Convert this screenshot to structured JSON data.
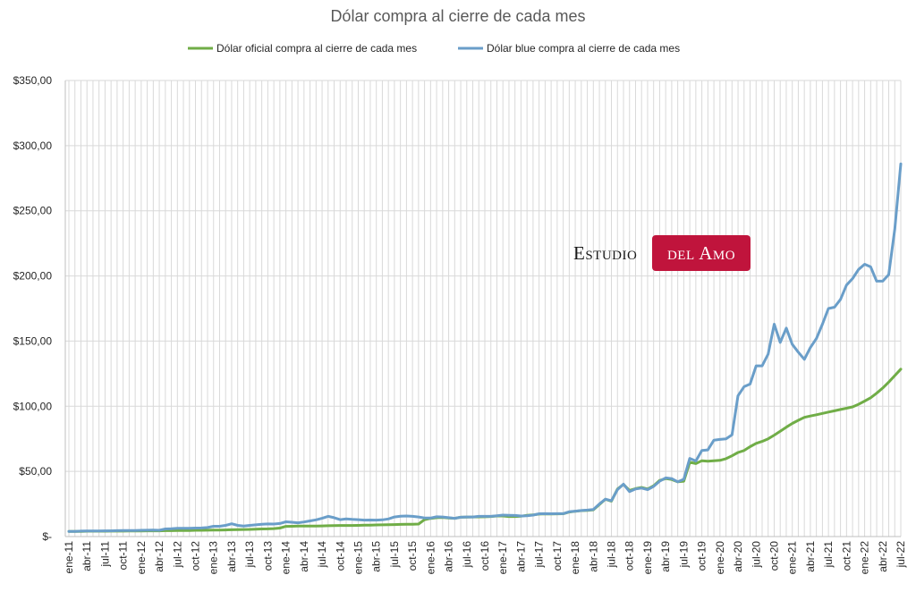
{
  "chart_data": {
    "type": "line",
    "title": "Dólar compra al cierre de cada mes",
    "xlabel": "",
    "ylabel": "",
    "ylim": [
      0,
      350
    ],
    "y_ticks": [
      0,
      50,
      100,
      150,
      200,
      250,
      300,
      350
    ],
    "y_tick_labels": [
      "$-",
      "$50,00",
      "$100,00",
      "$150,00",
      "$200,00",
      "$250,00",
      "$300,00",
      "$350,00"
    ],
    "grid": "vertical and horizontal",
    "legend_position": "top",
    "x": [
      "ene-11",
      "feb-11",
      "mar-11",
      "abr-11",
      "may-11",
      "jun-11",
      "jul-11",
      "ago-11",
      "sep-11",
      "oct-11",
      "nov-11",
      "dic-11",
      "ene-12",
      "feb-12",
      "mar-12",
      "abr-12",
      "may-12",
      "jun-12",
      "jul-12",
      "ago-12",
      "sep-12",
      "oct-12",
      "nov-12",
      "dic-12",
      "ene-13",
      "feb-13",
      "mar-13",
      "abr-13",
      "may-13",
      "jun-13",
      "jul-13",
      "ago-13",
      "sep-13",
      "oct-13",
      "nov-13",
      "dic-13",
      "ene-14",
      "feb-14",
      "mar-14",
      "abr-14",
      "may-14",
      "jun-14",
      "jul-14",
      "ago-14",
      "sep-14",
      "oct-14",
      "nov-14",
      "dic-14",
      "ene-15",
      "feb-15",
      "mar-15",
      "abr-15",
      "may-15",
      "jun-15",
      "jul-15",
      "ago-15",
      "sep-15",
      "oct-15",
      "nov-15",
      "dic-15",
      "ene-16",
      "feb-16",
      "mar-16",
      "abr-16",
      "may-16",
      "jun-16",
      "jul-16",
      "ago-16",
      "sep-16",
      "oct-16",
      "nov-16",
      "dic-16",
      "ene-17",
      "feb-17",
      "mar-17",
      "abr-17",
      "may-17",
      "jun-17",
      "jul-17",
      "ago-17",
      "sep-17",
      "oct-17",
      "nov-17",
      "dic-17",
      "ene-18",
      "feb-18",
      "mar-18",
      "abr-18",
      "may-18",
      "jun-18",
      "jul-18",
      "ago-18",
      "sep-18",
      "oct-18",
      "nov-18",
      "dic-18",
      "ene-19",
      "feb-19",
      "mar-19",
      "abr-19",
      "may-19",
      "jun-19",
      "jul-19",
      "ago-19",
      "sep-19",
      "oct-19",
      "nov-19",
      "dic-19",
      "ene-20",
      "feb-20",
      "mar-20",
      "abr-20",
      "may-20",
      "jun-20",
      "jul-20",
      "ago-20",
      "sep-20",
      "oct-20",
      "nov-20",
      "dic-20",
      "ene-21",
      "feb-21",
      "mar-21",
      "abr-21",
      "may-21",
      "jun-21",
      "jul-21",
      "ago-21",
      "sep-21",
      "oct-21",
      "nov-21",
      "dic-21",
      "ene-22",
      "feb-22",
      "mar-22",
      "abr-22",
      "may-22",
      "jun-22",
      "jul-22"
    ],
    "x_tick_labels": [
      "ene-11",
      "abr-11",
      "jul-11",
      "oct-11",
      "ene-12",
      "abr-12",
      "jul-12",
      "oct-12",
      "ene-13",
      "abr-13",
      "jul-13",
      "oct-13",
      "ene-14",
      "abr-14",
      "jul-14",
      "oct-14",
      "ene-15",
      "abr-15",
      "jul-15",
      "oct-15",
      "ene-16",
      "abr-16",
      "jul-16",
      "oct-16",
      "ene-17",
      "abr-17",
      "jul-17",
      "oct-17",
      "ene-18",
      "abr-18",
      "jul-18",
      "oct-18",
      "ene-19",
      "abr-19",
      "jul-19",
      "oct-19",
      "ene-20",
      "abr-20",
      "jul-20",
      "oct-20",
      "ene-21",
      "abr-21",
      "jul-21",
      "oct-21",
      "ene-22",
      "abr-22",
      "jul-22"
    ],
    "series": [
      {
        "name": "Dólar oficial compra al cierre de cada mes",
        "color": "#70ad47",
        "values": [
          4.0,
          4.0,
          4.0,
          4.1,
          4.1,
          4.1,
          4.1,
          4.2,
          4.2,
          4.2,
          4.3,
          4.3,
          4.3,
          4.4,
          4.4,
          4.4,
          4.5,
          4.5,
          4.6,
          4.6,
          4.7,
          4.8,
          4.8,
          4.9,
          5.0,
          5.0,
          5.1,
          5.2,
          5.3,
          5.4,
          5.5,
          5.7,
          5.8,
          5.9,
          6.1,
          6.5,
          7.8,
          7.9,
          8.0,
          8.0,
          8.1,
          8.1,
          8.2,
          8.3,
          8.4,
          8.5,
          8.5,
          8.5,
          8.6,
          8.7,
          8.8,
          8.9,
          9.0,
          9.1,
          9.2,
          9.3,
          9.4,
          9.5,
          9.6,
          13.0,
          13.9,
          14.5,
          14.7,
          14.2,
          14.0,
          14.8,
          14.9,
          15.0,
          15.1,
          15.2,
          15.4,
          15.8,
          15.8,
          15.4,
          15.4,
          15.6,
          16.3,
          16.6,
          17.2,
          17.4,
          17.3,
          17.4,
          17.5,
          18.8,
          19.4,
          19.9,
          20.1,
          20.5,
          24.5,
          28.6,
          27.2,
          36.5,
          40.0,
          35.4,
          36.8,
          37.7,
          36.5,
          39.0,
          43.0,
          44.5,
          43.8,
          42.0,
          42.5,
          57.0,
          56.0,
          58.2,
          57.8,
          58.1,
          58.5,
          59.8,
          62.0,
          64.5,
          66.0,
          69.0,
          71.5,
          73.0,
          75.0,
          77.8,
          80.8,
          83.9,
          86.8,
          89.2,
          91.5,
          92.5,
          93.5,
          94.5,
          95.5,
          96.5,
          97.5,
          98.5,
          99.5,
          101.5,
          104.0,
          106.5,
          110.0,
          114.0,
          118.5,
          123.5,
          128.5
        ]
      },
      {
        "name": "Dólar blue compra al cierre de cada mes",
        "color": "#6a9ec9",
        "values": [
          4.0,
          4.0,
          4.2,
          4.3,
          4.3,
          4.3,
          4.4,
          4.4,
          4.5,
          4.6,
          4.6,
          4.7,
          4.8,
          4.9,
          5.0,
          4.8,
          5.8,
          6.0,
          6.3,
          6.4,
          6.4,
          6.5,
          6.6,
          6.9,
          7.9,
          7.9,
          8.6,
          9.8,
          8.6,
          8.0,
          8.6,
          9.0,
          9.5,
          9.7,
          9.6,
          10.0,
          11.3,
          11.0,
          10.6,
          11.2,
          12.0,
          12.8,
          14.0,
          15.5,
          14.5,
          13.0,
          13.5,
          13.2,
          13.0,
          12.6,
          12.7,
          12.6,
          12.8,
          13.5,
          15.0,
          15.6,
          15.8,
          15.5,
          15.0,
          14.3,
          14.2,
          15.2,
          15.0,
          14.5,
          14.0,
          14.8,
          15.0,
          15.0,
          15.5,
          15.5,
          15.5,
          16.0,
          16.5,
          16.3,
          16.2,
          15.8,
          16.0,
          16.5,
          17.5,
          17.6,
          17.5,
          17.6,
          17.6,
          19.0,
          19.5,
          20.0,
          20.3,
          20.8,
          25.0,
          28.7,
          27.5,
          36.0,
          40.2,
          34.5,
          36.5,
          37.2,
          36.0,
          38.5,
          42.5,
          45.0,
          44.5,
          42.0,
          44.0,
          60.0,
          58.0,
          66.0,
          66.5,
          74.0,
          74.5,
          75.0,
          78.0,
          108.0,
          115.0,
          117.0,
          131.0,
          131.0,
          140.0,
          163.0,
          149.0,
          160.0,
          147.5,
          141.5,
          136.0,
          145.0,
          152.0,
          163.0,
          175.0,
          176.0,
          182.0,
          193.0,
          198.0,
          205.0,
          209.0,
          207.0,
          196.0,
          196.0,
          201.0,
          236.0,
          286.0
        ]
      }
    ]
  },
  "watermark": {
    "part1": "Estudio",
    "part2": "del Amo",
    "badge_color": "#c0143c"
  }
}
